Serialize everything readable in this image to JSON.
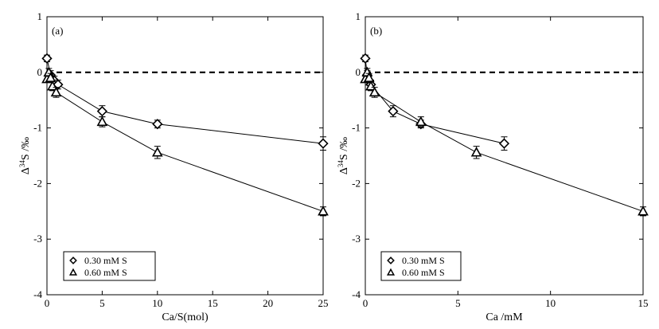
{
  "chart_data": [
    {
      "type": "line",
      "panel_label": "(a)",
      "xlabel": "Ca/S(mol)",
      "ylabel_main": "Δ",
      "ylabel_sup": "34",
      "ylabel_rest": "S /‰",
      "xlim": [
        0,
        25
      ],
      "ylim": [
        -4,
        1
      ],
      "xticks": [
        0,
        5,
        10,
        15,
        20,
        25
      ],
      "yticks": [
        1,
        0,
        -1,
        -2,
        -3,
        -4
      ],
      "reference_line_y": 0,
      "legend_position": "bottom-left",
      "series": [
        {
          "name": "0.30 mM S",
          "marker": "diamond",
          "x": [
            0,
            0.33,
            0.67,
            1,
            5,
            10,
            25
          ],
          "y": [
            0.25,
            -0.05,
            -0.15,
            -0.22,
            -0.7,
            -0.93,
            -1.28
          ],
          "err": [
            0.06,
            0.08,
            0.08,
            0.08,
            0.1,
            0.07,
            0.12
          ]
        },
        {
          "name": "0.60 mM S",
          "marker": "triangle",
          "x": [
            0,
            0.17,
            0.33,
            0.5,
            0.83,
            5,
            10,
            25
          ],
          "y": [
            -0.12,
            0.0,
            -0.1,
            -0.25,
            -0.36,
            -0.89,
            -1.44,
            -2.5
          ],
          "err": [
            0.05,
            0.07,
            0.08,
            0.08,
            0.09,
            0.09,
            0.11,
            0.08
          ]
        }
      ]
    },
    {
      "type": "line",
      "panel_label": "(b)",
      "xlabel": "Ca /mM",
      "ylabel_main": "Δ",
      "ylabel_sup": "34",
      "ylabel_rest": "S /‰",
      "xlim": [
        0,
        15
      ],
      "ylim": [
        -4,
        1
      ],
      "xticks": [
        0,
        5,
        10,
        15
      ],
      "yticks": [
        1,
        0,
        -1,
        -2,
        -3,
        -4
      ],
      "reference_line_y": 0,
      "legend_position": "bottom-left",
      "series": [
        {
          "name": "0.30 mM S",
          "marker": "diamond",
          "x": [
            0,
            0.1,
            0.2,
            0.3,
            1.5,
            3,
            7.5
          ],
          "y": [
            0.25,
            -0.05,
            -0.15,
            -0.22,
            -0.7,
            -0.93,
            -1.28
          ],
          "err": [
            0.06,
            0.08,
            0.08,
            0.08,
            0.1,
            0.07,
            0.12
          ]
        },
        {
          "name": "0.60 mM S",
          "marker": "triangle",
          "x": [
            0,
            0.1,
            0.2,
            0.3,
            0.5,
            3,
            6,
            15
          ],
          "y": [
            -0.12,
            0.0,
            -0.1,
            -0.25,
            -0.36,
            -0.89,
            -1.44,
            -2.5
          ],
          "err": [
            0.05,
            0.07,
            0.08,
            0.08,
            0.09,
            0.09,
            0.11,
            0.08
          ]
        }
      ]
    }
  ]
}
